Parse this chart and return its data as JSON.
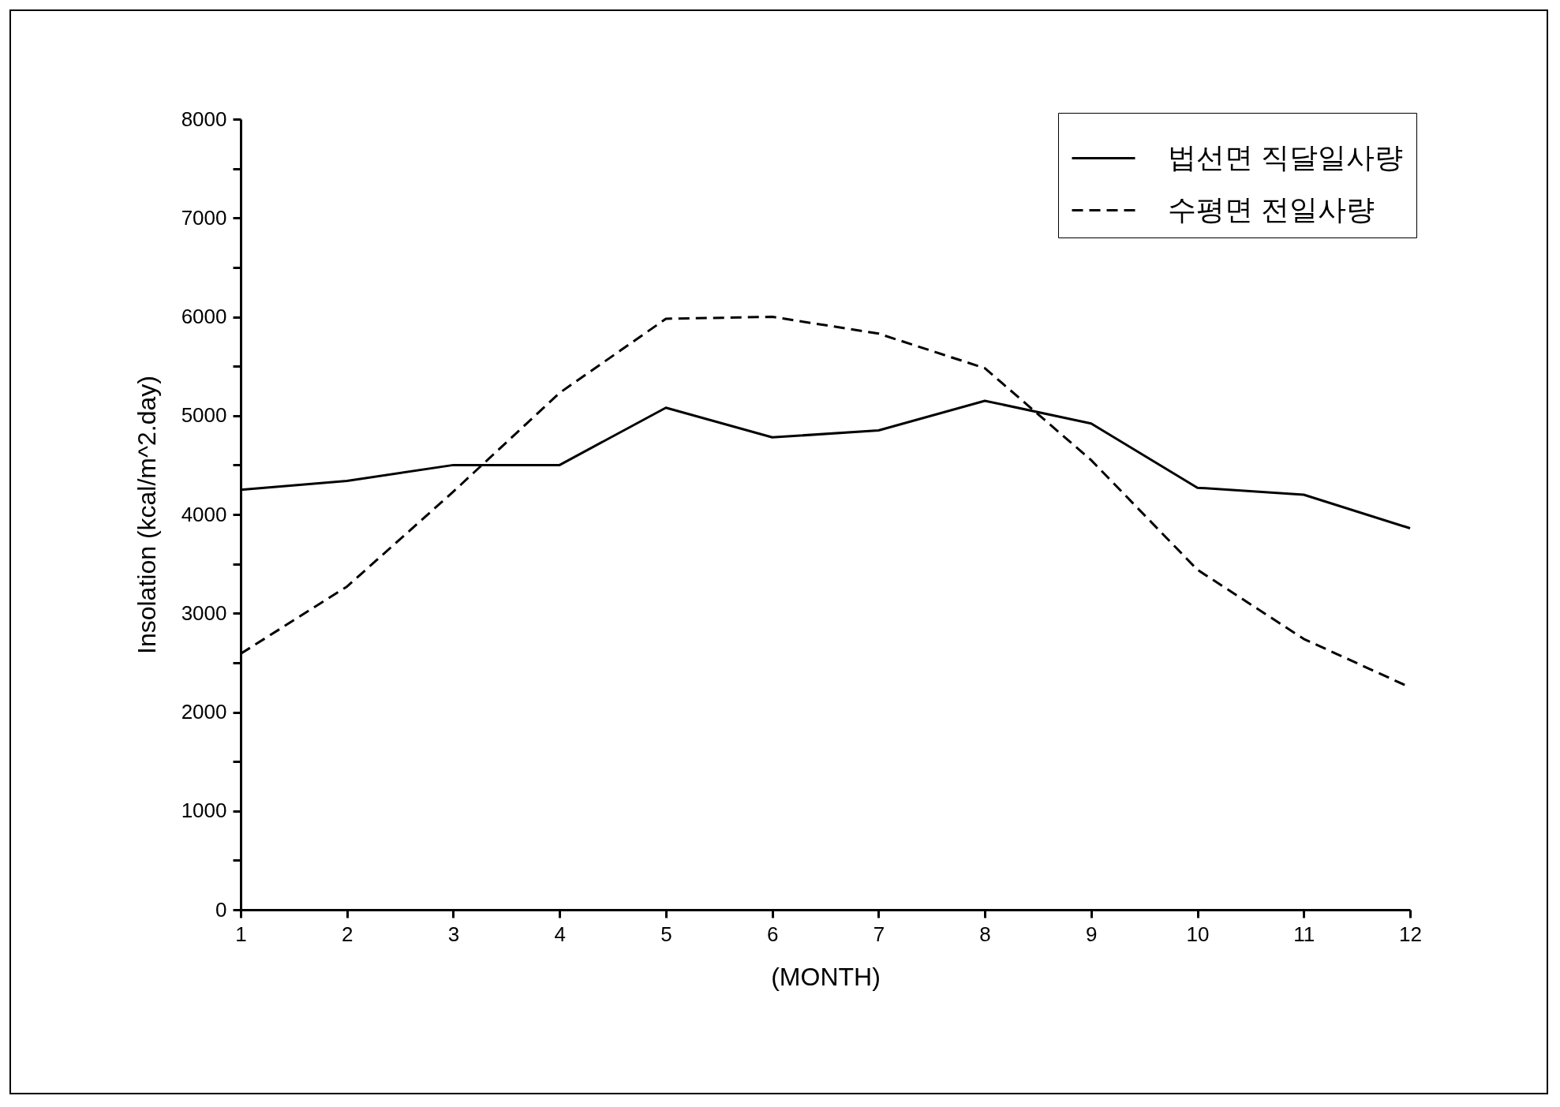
{
  "chart_data": {
    "type": "line",
    "xlabel": "(MONTH)",
    "ylabel": "Insolation (kcal/m^2.day)",
    "x": [
      1,
      2,
      3,
      4,
      5,
      6,
      7,
      8,
      9,
      10,
      11,
      12
    ],
    "xlim": [
      1,
      12
    ],
    "xticks": [
      1,
      2,
      3,
      4,
      5,
      6,
      7,
      8,
      9,
      10,
      11,
      12
    ],
    "ylim": [
      0,
      8000
    ],
    "yticks": [
      0,
      {
        "value": 500,
        "label": null
      },
      1000,
      {
        "value": 1500,
        "label": null
      },
      2000,
      {
        "value": 2500,
        "label": null
      },
      3000,
      {
        "value": 3500,
        "label": null
      },
      4000,
      {
        "value": 4500,
        "label": null
      },
      5000,
      {
        "value": 5500,
        "label": null
      },
      6000,
      {
        "value": 6500,
        "label": null
      },
      7000,
      {
        "value": 7500,
        "label": null
      },
      8000
    ],
    "grid": false,
    "legend": "top right",
    "marker": "none",
    "series": [
      {
        "name": "법선면 직달일사량",
        "color": "#000000",
        "line_style": "solid",
        "values": [
          4250,
          4340,
          4500,
          4500,
          5080,
          4780,
          4850,
          5150,
          4920,
          4270,
          4200,
          3860
        ]
      },
      {
        "name": "수평면 전일사량",
        "color": "#000000",
        "line_style": "dashed",
        "values": [
          2590,
          3270,
          4230,
          5230,
          5980,
          6000,
          5830,
          5480,
          4550,
          3440,
          2740,
          2250
        ]
      }
    ]
  }
}
